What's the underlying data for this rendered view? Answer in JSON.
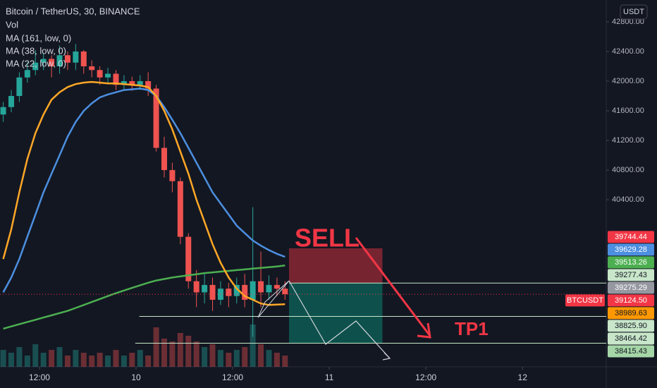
{
  "chart_data": {
    "type": "candlestick",
    "title": "Bitcoin / TetherUS, 30, BINANCE",
    "legend": [
      "Vol",
      "MA (161, low, 0)",
      "MA (38, low, 0)",
      "MA (22, low, 0)"
    ],
    "currency": "USDT",
    "xlim": [
      7.1,
      82.4
    ],
    "xticks": [
      {
        "value": 12,
        "label": "12:00"
      },
      {
        "value": 24,
        "label": "10"
      },
      {
        "value": 36,
        "label": "12:00"
      },
      {
        "value": 48,
        "label": "11"
      },
      {
        "value": 60,
        "label": "12:00"
      },
      {
        "value": 72,
        "label": "12"
      }
    ],
    "ylim": [
      38145,
      43095
    ],
    "yticks": [
      {
        "value": 40400,
        "label": "40400.00"
      },
      {
        "value": 40800,
        "label": "40800.00"
      },
      {
        "value": 41200,
        "label": "41200.00"
      },
      {
        "value": 41600,
        "label": "41600.00"
      },
      {
        "value": 42000,
        "label": "42000.00"
      },
      {
        "value": 42400,
        "label": "42400.00"
      },
      {
        "value": 42800,
        "label": "42800.00"
      }
    ],
    "up_color": "#26a69a",
    "down_color": "#ef5350",
    "x": [
      7.5,
      8.5,
      9.5,
      10.5,
      11.5,
      12.5,
      13.5,
      14.5,
      15.5,
      16.5,
      17.5,
      18.5,
      19.5,
      20.5,
      21.5,
      22.5,
      23.5,
      24.5,
      25.5,
      26.5,
      27.5,
      28.5,
      29.5,
      30.5,
      31.5,
      32.5,
      33.5,
      34.5,
      35.5,
      36.5,
      37.5,
      38.5,
      39.5,
      40.5,
      41.5,
      42.5
    ],
    "open": [
      41550,
      41650,
      41800,
      42050,
      42150,
      42250,
      42300,
      42200,
      42350,
      42250,
      42400,
      42200,
      42150,
      42050,
      42100,
      41950,
      42000,
      41950,
      42000,
      41900,
      41100,
      40800,
      40650,
      39900,
      39300,
      39150,
      39250,
      39050,
      39200,
      39100,
      39250,
      39050,
      39300,
      39150,
      39250,
      39200
    ],
    "high": [
      41720,
      41880,
      42120,
      42260,
      42420,
      42380,
      42350,
      42480,
      42400,
      42500,
      42420,
      42280,
      42200,
      42180,
      42150,
      42080,
      42060,
      42080,
      42120,
      41950,
      41250,
      40900,
      40700,
      39950,
      39450,
      39400,
      39350,
      39300,
      39280,
      39350,
      39400,
      40300,
      39700,
      39380,
      39350,
      39300
    ],
    "low": [
      41450,
      41580,
      41720,
      41980,
      42080,
      42150,
      42050,
      42100,
      42150,
      42150,
      42100,
      42050,
      41950,
      41980,
      41880,
      41880,
      41870,
      41880,
      41800,
      41050,
      40700,
      40500,
      39800,
      39200,
      38950,
      39000,
      38900,
      38980,
      38950,
      39000,
      38950,
      38550,
      38950,
      39050,
      39100,
      39050
    ],
    "close": [
      41650,
      41800,
      42050,
      42150,
      42250,
      42300,
      42200,
      42350,
      42250,
      42400,
      42200,
      42150,
      42050,
      42100,
      41950,
      42000,
      41950,
      42000,
      41900,
      41100,
      40800,
      40650,
      39900,
      39300,
      39150,
      39250,
      39050,
      39200,
      39100,
      39250,
      39050,
      39300,
      39150,
      39250,
      39200,
      39124.5
    ],
    "volume": [
      30,
      25,
      35,
      20,
      40,
      25,
      30,
      35,
      20,
      30,
      25,
      20,
      25,
      20,
      30,
      20,
      25,
      30,
      20,
      70,
      50,
      45,
      60,
      55,
      45,
      35,
      40,
      30,
      25,
      30,
      35,
      75,
      40,
      30,
      25,
      20
    ],
    "series": [
      {
        "name": "MA (161, low, 0)",
        "color": "#4caf50",
        "values": [
          38660,
          38690,
          38720,
          38750,
          38780,
          38810,
          38840,
          38870,
          38900,
          38940,
          38980,
          39020,
          39060,
          39100,
          39140,
          39175,
          39210,
          39245,
          39280,
          39310,
          39330,
          39350,
          39365,
          39380,
          39395,
          39410,
          39420,
          39430,
          39440,
          39450,
          39460,
          39470,
          39480,
          39490,
          39500,
          39513.26
        ]
      },
      {
        "name": "MA (38, low, 0)",
        "color": "#4c8fe0",
        "values": [
          39150,
          39350,
          39600,
          39900,
          40200,
          40500,
          40750,
          41000,
          41250,
          41450,
          41600,
          41700,
          41780,
          41820,
          41850,
          41880,
          41890,
          41900,
          41880,
          41800,
          41650,
          41480,
          41300,
          41100,
          40900,
          40700,
          40500,
          40350,
          40200,
          40050,
          39950,
          39850,
          39780,
          39720,
          39670,
          39629.28
        ]
      },
      {
        "name": "MA (22, low, 0)",
        "color": "#ffa726",
        "values": [
          39600,
          40000,
          40500,
          40950,
          41300,
          41550,
          41750,
          41850,
          41920,
          41960,
          41980,
          41990,
          41980,
          41970,
          41970,
          41960,
          41950,
          41940,
          41920,
          41800,
          41600,
          41350,
          41050,
          40750,
          40400,
          40100,
          39800,
          39550,
          39350,
          39200,
          39100,
          39050,
          39000,
          38980,
          38985,
          38989.63
        ]
      }
    ],
    "price_labels": [
      {
        "value": 39744.44,
        "color": "#f23645",
        "text_color": "#ffffff"
      },
      {
        "value": 39629.28,
        "color": "#4c8fe0",
        "text_color": "#ffffff"
      },
      {
        "value": 39513.26,
        "color": "#4caf50",
        "text_color": "#ffffff"
      },
      {
        "value": 39277.43,
        "color": "#c8e6c9",
        "text_color": "#131722"
      },
      {
        "value": 39275.29,
        "color": "#9598a1",
        "text_color": "#ffffff",
        "line_from": 43.0
      },
      {
        "value": 39124.5,
        "label": "39124.50",
        "color": "#f23645",
        "text_color": "#ffffff",
        "name": "BTCUSDT"
      },
      {
        "value": 38989.63,
        "color": "#ff9800",
        "text_color": "#131722"
      },
      {
        "value": 38825.9,
        "label": "38825.90",
        "color": "#c8e6c9",
        "text_color": "#131722",
        "line_from": 24.4
      },
      {
        "value": 38464.42,
        "color": "#c8e6c9",
        "text_color": "#131722",
        "line_from": 23.9
      },
      {
        "value": 38415.43,
        "color": "#a5d6a7",
        "text_color": "#131722"
      }
    ],
    "position_x": [
      43.0,
      54.6
    ],
    "annotations": [
      "SELL",
      "TP1"
    ]
  }
}
